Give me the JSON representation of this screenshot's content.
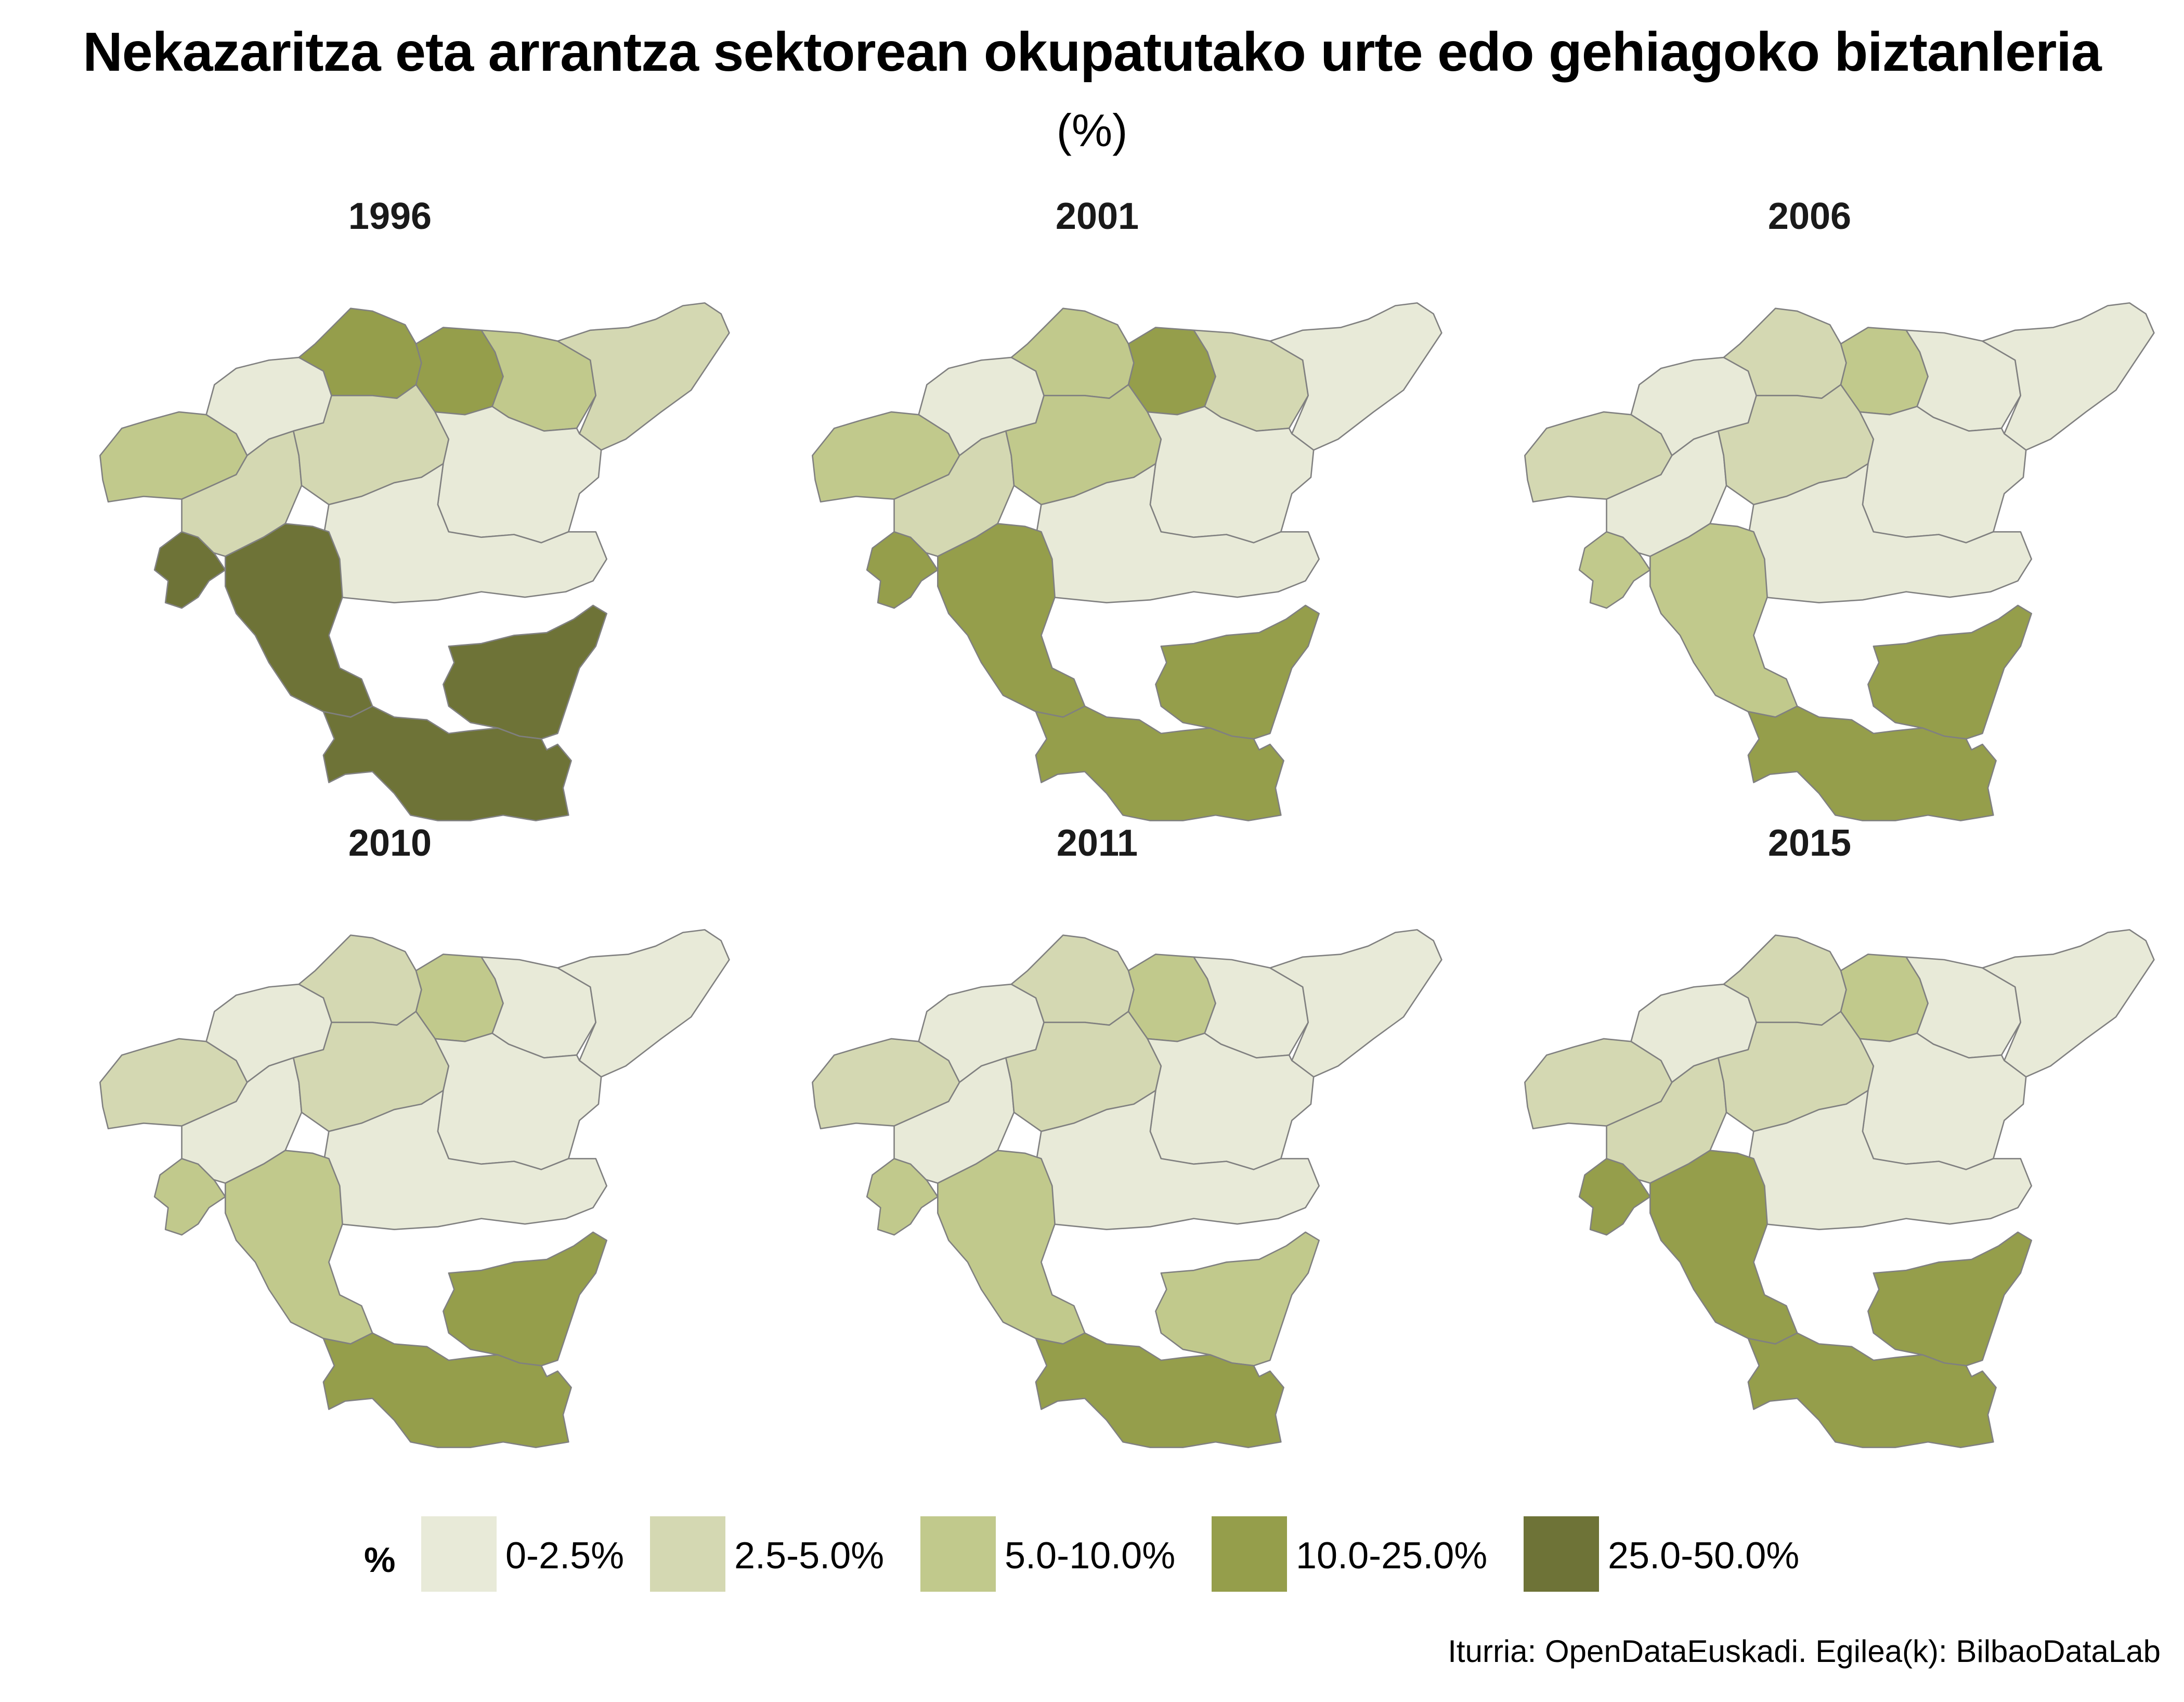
{
  "title": "Nekazaritza eta arrantza sektorean okupatutako urte edo gehiagoko  biztanleria",
  "subtitle": "(%)",
  "caption": "Iturria: OpenDataEuskadi. Egilea(k): BilbaoDataLab",
  "colors": {
    "c1": "#e8ead8",
    "c2": "#d4d8b2",
    "c3": "#c1c98c",
    "c4": "#959e4b",
    "c5": "#6e7337",
    "border": "#808080"
  },
  "legend": {
    "title": "%",
    "items": [
      {
        "label": "0-2.5%",
        "color": "#e8ead8"
      },
      {
        "label": "2.5-5.0%",
        "color": "#d4d8b2"
      },
      {
        "label": "5.0-10.0%",
        "color": "#c1c98c"
      },
      {
        "label": "10.0-25.0%",
        "color": "#959e4b"
      },
      {
        "label": "25.0-50.0%",
        "color": "#6e7337"
      }
    ]
  },
  "regions": [
    "west",
    "coastW",
    "north1",
    "north2",
    "coastE",
    "east",
    "centerW",
    "center",
    "centerE",
    "south",
    "sw",
    "swSmall",
    "se",
    "ss"
  ],
  "panels": [
    {
      "year": "1996",
      "classes": {
        "west": 3,
        "coastW": 1,
        "north1": 4,
        "north2": 4,
        "coastE": 3,
        "east": 2,
        "centerW": 2,
        "center": 2,
        "centerE": 1,
        "south": 1,
        "sw": 5,
        "swSmall": 5,
        "se": 5,
        "ss": 5
      }
    },
    {
      "year": "2001",
      "classes": {
        "west": 3,
        "coastW": 1,
        "north1": 3,
        "north2": 4,
        "coastE": 2,
        "east": 1,
        "centerW": 2,
        "center": 3,
        "centerE": 1,
        "south": 1,
        "sw": 4,
        "swSmall": 4,
        "se": 4,
        "ss": 4
      }
    },
    {
      "year": "2006",
      "classes": {
        "west": 2,
        "coastW": 1,
        "north1": 2,
        "north2": 3,
        "coastE": 1,
        "east": 1,
        "centerW": 1,
        "center": 2,
        "centerE": 1,
        "south": 1,
        "sw": 3,
        "swSmall": 3,
        "se": 4,
        "ss": 4
      }
    },
    {
      "year": "2010",
      "classes": {
        "west": 2,
        "coastW": 1,
        "north1": 2,
        "north2": 3,
        "coastE": 1,
        "east": 1,
        "centerW": 1,
        "center": 2,
        "centerE": 1,
        "south": 1,
        "sw": 3,
        "swSmall": 3,
        "se": 4,
        "ss": 4
      }
    },
    {
      "year": "2011",
      "classes": {
        "west": 2,
        "coastW": 1,
        "north1": 2,
        "north2": 3,
        "coastE": 1,
        "east": 1,
        "centerW": 1,
        "center": 2,
        "centerE": 1,
        "south": 1,
        "sw": 3,
        "swSmall": 3,
        "se": 3,
        "ss": 4
      }
    },
    {
      "year": "2015",
      "classes": {
        "west": 2,
        "coastW": 1,
        "north1": 2,
        "north2": 3,
        "coastE": 1,
        "east": 1,
        "centerW": 2,
        "center": 2,
        "centerE": 1,
        "south": 1,
        "sw": 4,
        "swSmall": 4,
        "se": 4,
        "ss": 4
      }
    }
  ]
}
